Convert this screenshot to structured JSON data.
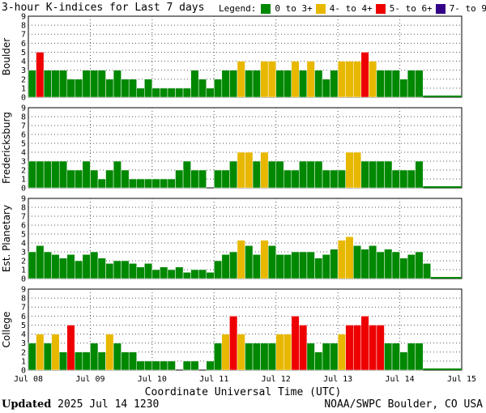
{
  "title": "3-hour K-indices for Last 7 days",
  "legend": {
    "title": "Legend:",
    "items": [
      {
        "label": "0 to 3+",
        "color": "#008800"
      },
      {
        "label": "4- to 4+",
        "color": "#e8b800"
      },
      {
        "label": "5- to 6+",
        "color": "#ee0000"
      },
      {
        "label": "7- to 9",
        "color": "#330088"
      }
    ]
  },
  "footer": {
    "updated_label": "Updated",
    "updated_value": "2025 Jul 14 1230",
    "credit": "NOAA/SWPC Boulder, CO USA"
  },
  "chart_data": {
    "type": "bar",
    "xlabel": "Coordinate Universal Time (UTC)",
    "x_ticks": [
      "Jul 08",
      "Jul 09",
      "Jul 10",
      "Jul 11",
      "Jul 12",
      "Jul 13",
      "Jul 14",
      "Jul 15"
    ],
    "ylim": [
      0,
      9
    ],
    "y_ticks": [
      "0",
      "1",
      "2",
      "3",
      "4",
      "5",
      "6",
      "7",
      "8",
      "9"
    ],
    "panels": [
      {
        "name": "Boulder",
        "values": [
          3,
          5,
          3,
          3,
          3,
          2,
          2,
          3,
          3,
          3,
          2,
          3,
          2,
          2,
          1,
          2,
          1,
          1,
          1,
          1,
          1,
          3,
          2,
          1,
          2,
          3,
          3,
          4,
          3,
          3,
          4,
          4,
          3,
          3,
          4,
          3,
          4,
          3,
          2,
          3,
          4,
          4,
          4,
          5,
          4,
          3,
          3,
          3,
          2,
          3,
          3
        ]
      },
      {
        "name": "Fredericksburg",
        "values": [
          3,
          3,
          3,
          3,
          3,
          2,
          2,
          3,
          2,
          1,
          2,
          3,
          2,
          1,
          1,
          1,
          1,
          1,
          1,
          2,
          3,
          2,
          2,
          0,
          2,
          2,
          3,
          4,
          4,
          3,
          4,
          3,
          3,
          2,
          2,
          3,
          3,
          3,
          2,
          2,
          2,
          4,
          4,
          3,
          3,
          3,
          3,
          2,
          2,
          2,
          3
        ]
      },
      {
        "name": "Est. Planetary",
        "values": [
          3,
          3.7,
          3,
          2.7,
          2.3,
          2.7,
          2,
          2.7,
          3,
          2.3,
          1.7,
          2,
          2,
          1.7,
          1.3,
          1.7,
          1,
          1.3,
          1,
          1.3,
          0.7,
          1,
          1,
          0.7,
          2,
          2.7,
          3,
          4.3,
          3.7,
          2.7,
          4.3,
          3.7,
          2.7,
          2.7,
          3,
          3,
          3,
          2.3,
          2.7,
          3.3,
          4.3,
          4.7,
          3.7,
          3.3,
          3.7,
          3,
          3.3,
          3,
          2.3,
          2.7,
          3,
          1.7
        ]
      },
      {
        "name": "College",
        "values": [
          3,
          4,
          3,
          4,
          2,
          5,
          2,
          2,
          3,
          2,
          4,
          3,
          2,
          2,
          1,
          1,
          1,
          1,
          1,
          0,
          1,
          1,
          0,
          1,
          3,
          4,
          6,
          4,
          3,
          3,
          3,
          3,
          4,
          4,
          6,
          5,
          3,
          2,
          3,
          3,
          4,
          5,
          5,
          6,
          5,
          5,
          3,
          3,
          2,
          3,
          3
        ]
      }
    ]
  }
}
